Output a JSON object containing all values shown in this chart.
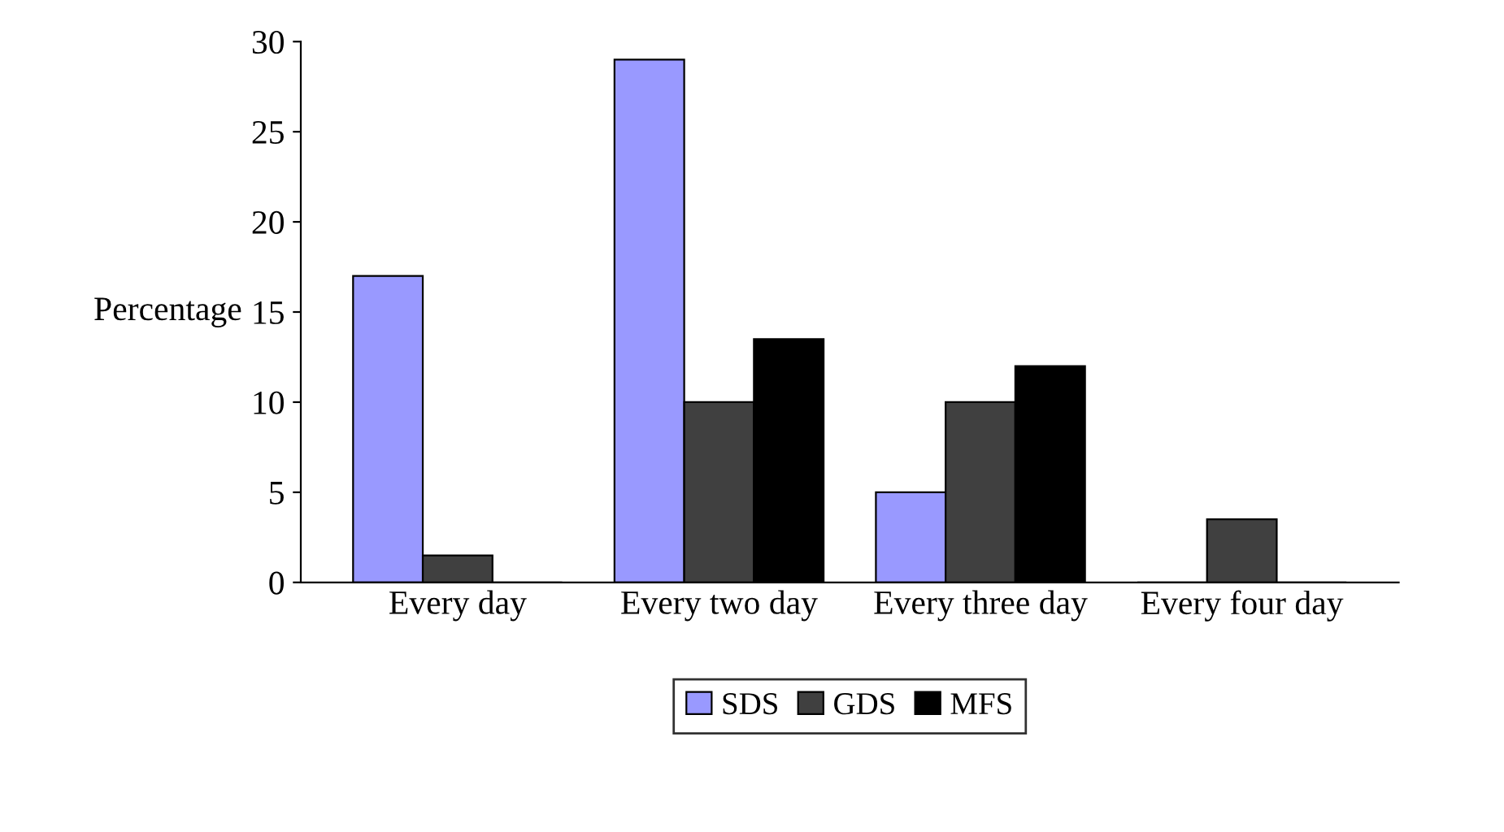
{
  "chart_data": {
    "type": "bar",
    "ylabel": "Percentage",
    "categories": [
      "Every day",
      "Every two day",
      "Every three day",
      "Every four day"
    ],
    "series": [
      {
        "name": "SDS",
        "color": "#9999ff",
        "values": [
          17,
          29,
          5,
          0
        ]
      },
      {
        "name": "GDS",
        "color": "#404040",
        "values": [
          1.5,
          10,
          10,
          3.5
        ]
      },
      {
        "name": "MFS",
        "color": "#000000",
        "values": [
          0,
          13.5,
          12,
          0
        ]
      }
    ],
    "ylim": [
      0,
      30
    ],
    "yticks": [
      0,
      5,
      10,
      15,
      20,
      25,
      30
    ],
    "grid": false,
    "legend": "bottom"
  }
}
